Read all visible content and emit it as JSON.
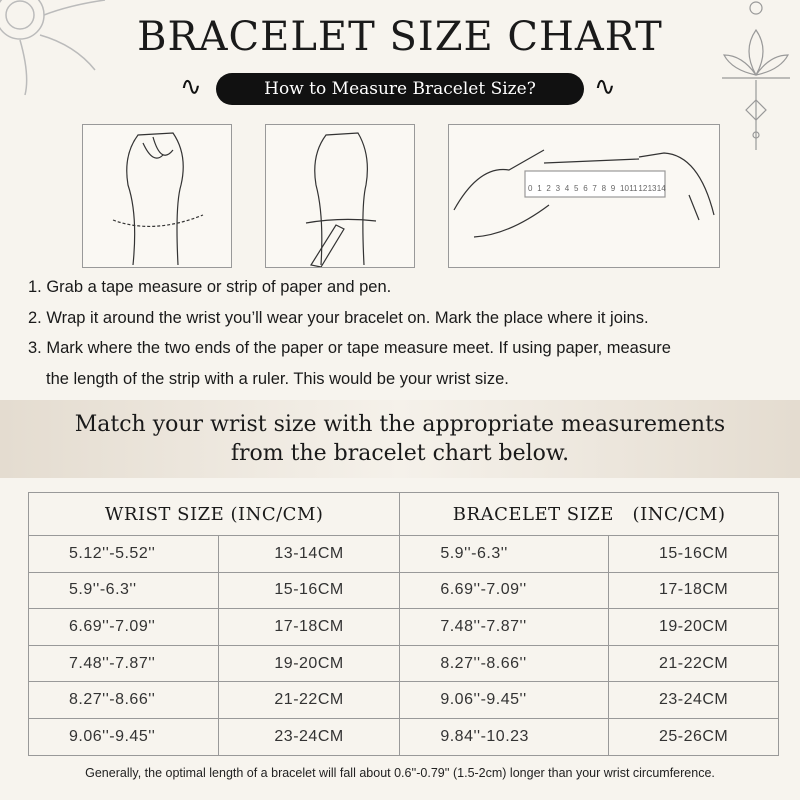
{
  "title": "BRACELET SIZE CHART",
  "subtitle": "How to Measure Bracelet Size?",
  "ruler_numbers": [
    "0",
    "1",
    "2",
    "3",
    "4",
    "5",
    "6",
    "7",
    "8",
    "9",
    "10",
    "11",
    "12",
    "13",
    "14"
  ],
  "steps": [
    "1. Grab a tape measure or strip of paper and pen.",
    "2. Wrap it around the wrist you’ll wear your bracelet on. Mark the place where it joins.",
    "3. Mark where the two ends of the paper or tape measure meet. If using paper, measure",
    "the length of the strip with a ruler. This would be your wrist size."
  ],
  "band": {
    "line1": "Match your wrist size with the appropriate measurements",
    "line2": "from the bracelet chart below."
  },
  "table": {
    "headers": [
      "WRIST SIZE (INC/CM)",
      "BRACELET SIZE   (INC/CM)"
    ],
    "rows": [
      [
        "5.12''-5.52''",
        "13-14CM",
        "5.9''-6.3''",
        "15-16CM"
      ],
      [
        "5.9''-6.3''",
        "15-16CM",
        "6.69''-7.09''",
        "17-18CM"
      ],
      [
        "6.69''-7.09''",
        "17-18CM",
        "7.48''-7.87''",
        "19-20CM"
      ],
      [
        "7.48''-7.87''",
        "19-20CM",
        "8.27''-8.66''",
        "21-22CM"
      ],
      [
        "8.27''-8.66''",
        "21-22CM",
        "9.06''-9.45''",
        "23-24CM"
      ],
      [
        "9.06''-9.45''",
        "23-24CM",
        "9.84''-10.23",
        "25-26CM"
      ]
    ]
  },
  "footnote": "Generally, the optimal length of a bracelet will fall about 0.6''-0.79'' (1.5-2cm) longer than your wrist circumference."
}
